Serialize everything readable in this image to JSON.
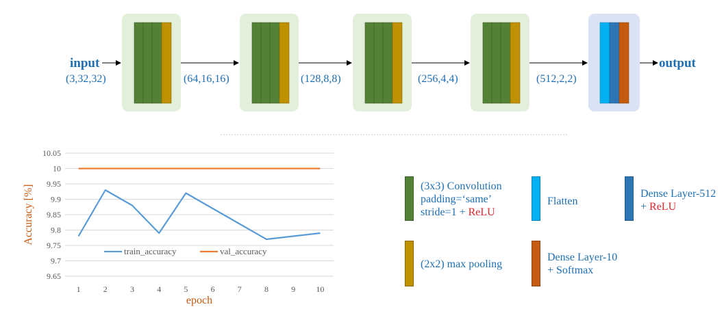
{
  "pipeline": {
    "input_label": "input",
    "output_label": "output",
    "shapes": [
      "(3,32,32)",
      "(64,16,16)",
      "(128,8,8)",
      "(256,4,4)",
      "(512,2,2)"
    ]
  },
  "colors": {
    "conv": "#538135",
    "pool": "#BF9000",
    "flatten": "#00B0F0",
    "dense512": "#2E75B6",
    "dense10": "#C55A11",
    "conv_block_bg": "#E2EFDA",
    "dense_block_bg": "#DAE3F3",
    "train_line": "#5B9BD5",
    "val_line": "#ED7D31",
    "label_blue": "#1F6FB5",
    "axis_label": "#C55A11",
    "relu_red": "#E0272E"
  },
  "legend": {
    "conv_line1": "(3x3) Convolution",
    "conv_line2": "padding=‘same’",
    "conv_line3_prefix": "stride=1 + ",
    "relu": "ReLU",
    "flatten": "Flatten",
    "dense512_line1": "Dense Layer-512",
    "dense512_line2_prefix": "+ ",
    "pool": "(2x2) max pooling",
    "dense10_line1": "Dense Layer-10",
    "dense10_line2": "+ Softmax"
  },
  "chart_data": {
    "type": "line",
    "x": [
      1,
      2,
      3,
      4,
      5,
      6,
      7,
      8,
      9,
      10
    ],
    "series": [
      {
        "name": "train_accuracy",
        "values": [
          9.78,
          9.93,
          9.88,
          9.79,
          9.92,
          9.87,
          9.82,
          9.77,
          9.78,
          9.79
        ]
      },
      {
        "name": "val_accuracy",
        "values": [
          10,
          10,
          10,
          10,
          10,
          10,
          10,
          10,
          10,
          10
        ]
      }
    ],
    "xlabel": "epoch",
    "ylabel": "Accuracy [%]",
    "ylim": [
      9.65,
      10.05
    ],
    "yticks": [
      "9.65",
      "9.7",
      "9.75",
      "9.8",
      "9.85",
      "9.9",
      "9.95",
      "10",
      "10.05"
    ],
    "xticks": [
      "1",
      "2",
      "3",
      "4",
      "5",
      "6",
      "7",
      "8",
      "9",
      "10"
    ],
    "grid": true,
    "legend_position": "bottom-inside"
  }
}
